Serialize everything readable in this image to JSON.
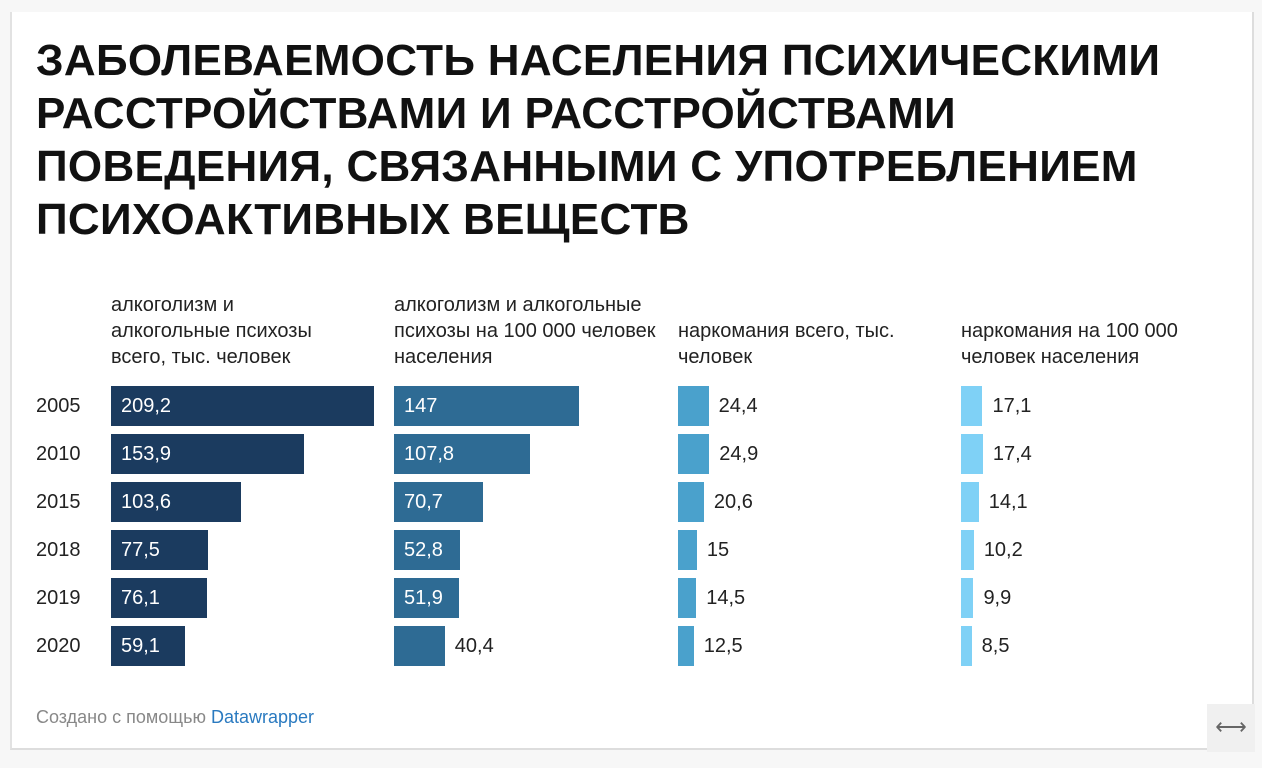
{
  "title": "ЗАБОЛЕВАЕМОСТЬ НАСЕЛЕНИЯ ПСИХИЧЕСКИМИ РАССТРОЙСТВАМИ И РАССТРОЙСТВАМИ ПОВЕДЕНИЯ, СВЯЗАННЫМИ С УПОТРЕБЛЕНИЕМ ПСИХОАКТИВНЫХ ВЕЩЕСТВ",
  "footer": {
    "prefix": "Создано с помощью",
    "link": "Datawrapper"
  },
  "resize_icon": "horizontal-arrows-icon",
  "chart_data": {
    "type": "bar",
    "orientation": "horizontal",
    "title": "ЗАБОЛЕВАЕМОСТЬ НАСЕЛЕНИЯ ПСИХИЧЕСКИМИ РАССТРОЙСТВАМИ И РАССТРОЙСТВАМИ ПОВЕДЕНИЯ, СВЯЗАННЫМИ С УПОТРЕБЛЕНИЕМ ПСИХОАКТИВНЫХ ВЕЩЕСТВ",
    "categories": [
      "2005",
      "2010",
      "2015",
      "2018",
      "2019",
      "2020"
    ],
    "series": [
      {
        "name": "алкоголизм и алкогольные психозы всего, тыс. человек",
        "color": "#1b3b5f",
        "values": [
          209.2,
          153.9,
          103.6,
          77.5,
          76.1,
          59.1
        ],
        "labels": [
          "209,2",
          "153,9",
          "103,6",
          "77,5",
          "76,1",
          "59,1"
        ]
      },
      {
        "name": "алкоголизм и алкогольные психозы на 100 000 человек населения",
        "color": "#2e6b94",
        "values": [
          147,
          107.8,
          70.7,
          52.8,
          51.9,
          40.4
        ],
        "labels": [
          "147",
          "107,8",
          "70,7",
          "52,8",
          "51,9",
          "40,4"
        ]
      },
      {
        "name": "наркомания всего, тыс. человек",
        "color": "#4aa1cc",
        "values": [
          24.4,
          24.9,
          20.6,
          15,
          14.5,
          12.5
        ],
        "labels": [
          "24,4",
          "24,9",
          "20,6",
          "15",
          "14,5",
          "12,5"
        ]
      },
      {
        "name": "наркомания на 100 000 человек населения",
        "color": "#7fd1f6",
        "values": [
          17.1,
          17.4,
          14.1,
          10.2,
          9.9,
          8.5
        ],
        "labels": [
          "17,1",
          "17,4",
          "14,1",
          "10,2",
          "9,9",
          "8,5"
        ]
      }
    ]
  }
}
